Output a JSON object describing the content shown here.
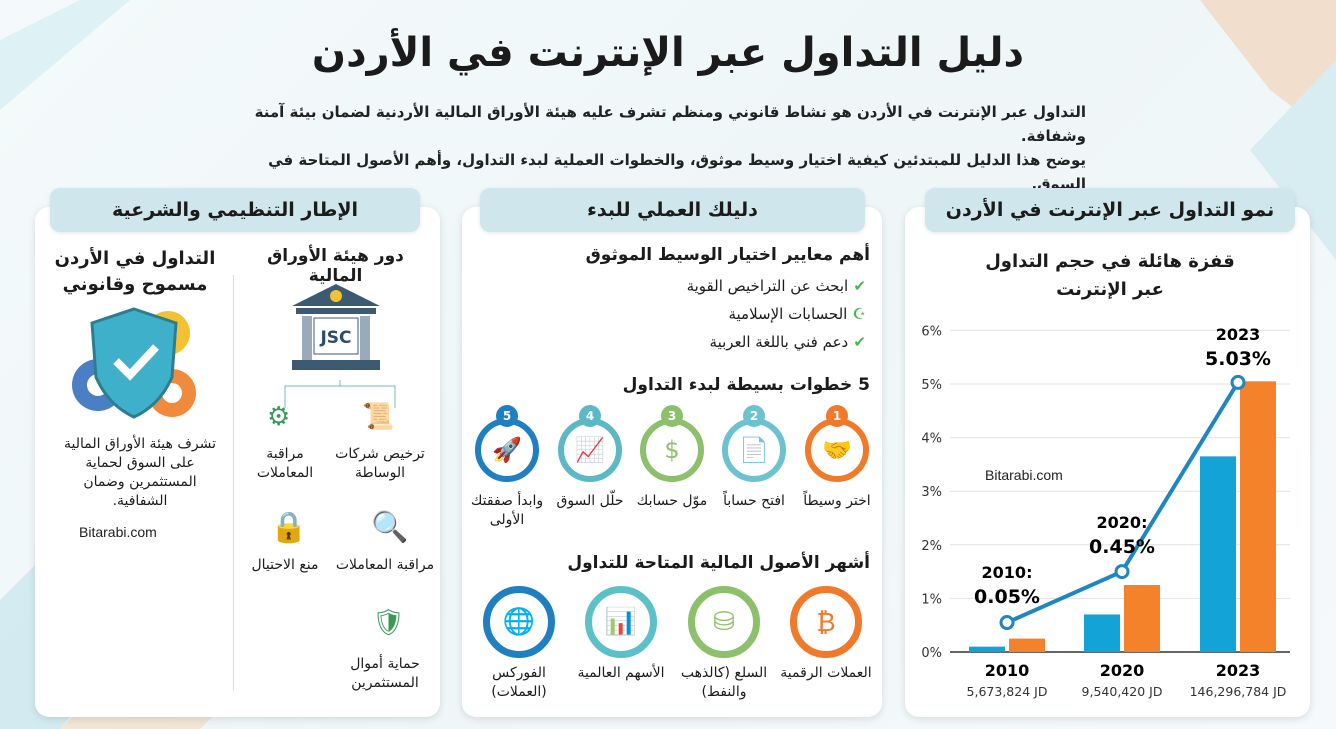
{
  "title": "دليل التداول عبر الإنترنت في الأردن",
  "intro": [
    "التداول عبر الإنترنت في الأردن هو نشاط قانوني ومنظم تشرف عليه هيئة الأوراق المالية الأردنية لضمان بيئة آمنة وشفافة.",
    "يوضح هذا الدليل للمبتدئين كيفية اختيار وسيط موثوق، والخطوات العملية لبدء التداول، وأهم الأصول المتاحة في السوق."
  ],
  "watermark": "Bitarabi.com",
  "left": {
    "header": "الإطار التنظيمي والشرعية",
    "legal_title": "التداول في الأردن مسموح وقانوني",
    "legal_text": "تشرف هيئة الأوراق المالية على السوق لحماية المستثمرين وضمان الشفافية.",
    "jsc_title": "دور هيئة الأوراق المالية",
    "jsc_logo": "JSC",
    "roles": [
      "ترخيص شركات الوساطة",
      "مراقبة المعاملات",
      "مراقبة المعاملات",
      "منع الاحتيال",
      "حماية أموال المستثمرين"
    ]
  },
  "middle": {
    "header": "دليلك العملي للبدء",
    "criteria_title": "أهم معايير اختيار الوسيط الموثوق",
    "criteria": [
      {
        "label": "ابحث عن التراخيص القوية",
        "icon": "check-icon"
      },
      {
        "label": "الحسابات الإسلامية",
        "icon": "crescent-icon"
      },
      {
        "label": "دعم فني باللغة العربية",
        "icon": "check-icon"
      }
    ],
    "steps_title": "5 خطوات بسيطة لبدء التداول",
    "steps": [
      {
        "n": "1",
        "label": "اختر وسيطاً",
        "color": "#f07a2a",
        "icon": "handshake-icon"
      },
      {
        "n": "2",
        "label": "افتح حساباً",
        "color": "#6cc3cf",
        "icon": "document-icon"
      },
      {
        "n": "3",
        "label": "موّل حسابك",
        "color": "#8cc06a",
        "icon": "money-bag-icon"
      },
      {
        "n": "4",
        "label": "حلّل السوق",
        "color": "#5bb8c4",
        "icon": "chart-magnifier-icon"
      },
      {
        "n": "5",
        "label": "وابدأ صفقتك الأولى",
        "color": "#1f7fc0",
        "icon": "rocket-icon"
      }
    ],
    "assets_title": "أشهر الأصول المالية المتاحة للتداول",
    "assets": [
      {
        "label": "العملات الرقمية",
        "color": "#f07a2a",
        "icon": "crypto-icon"
      },
      {
        "label": "السلع (كالذهب والنفط)",
        "color": "#8cc06a",
        "icon": "oil-gold-icon"
      },
      {
        "label": "الأسهم العالمية",
        "color": "#5bc0c8",
        "icon": "stocks-icon"
      },
      {
        "label": "الفوركس (العملات)",
        "color": "#1f7fc0",
        "icon": "forex-icon"
      }
    ]
  },
  "right": {
    "header": "نمو التداول عبر الإنترنت في الأردن"
  },
  "chart_data": {
    "type": "bar",
    "title": "قفزة هائلة في حجم التداول عبر الإنترنت",
    "categories": [
      "2010",
      "2020",
      "2023"
    ],
    "sublabels": [
      "5,673,824 JD",
      "9,540,420 JD",
      "146,296,784 JD"
    ],
    "ylim": [
      0,
      6
    ],
    "yticks": [
      "0%",
      "1%",
      "2%",
      "3%",
      "4%",
      "5%",
      "6%"
    ],
    "series": [
      {
        "name": "blue",
        "color": "#14a3d6",
        "values": [
          0.1,
          0.7,
          3.65
        ]
      },
      {
        "name": "orange",
        "color": "#f4822a",
        "values": [
          0.25,
          1.25,
          5.05
        ]
      }
    ],
    "line": {
      "color": "#1f86c2",
      "values": [
        0.55,
        1.5,
        5.03
      ]
    },
    "annotations": [
      [
        "2010:",
        "0.05%"
      ],
      [
        "2020:",
        "0.45%"
      ],
      [
        "2023",
        "5.03%"
      ]
    ]
  }
}
